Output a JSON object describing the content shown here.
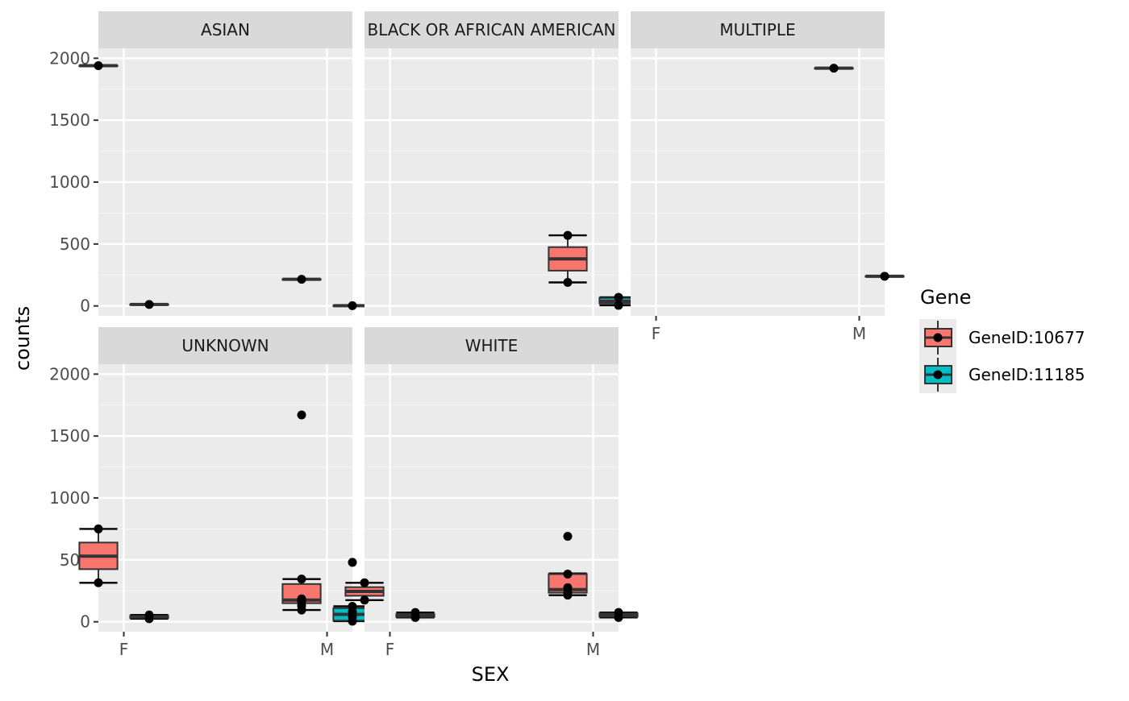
{
  "chart_data": {
    "type": "boxplot",
    "facet_variable": "RACE",
    "xlabel": "SEX",
    "ylabel": "counts",
    "ylim": [
      -80,
      2080
    ],
    "y_ticks": [
      0,
      500,
      1000,
      1500,
      2000
    ],
    "x_categories": [
      "F",
      "M"
    ],
    "grid": true,
    "legend": {
      "title": "Gene",
      "position": "right",
      "entries": [
        {
          "label": "GeneID:10677",
          "color": "#F8766D"
        },
        {
          "label": "GeneID:11185",
          "color": "#00BFC4"
        }
      ]
    },
    "panels": [
      {
        "title": "ASIAN",
        "boxes": [
          {
            "sex": "F",
            "gene": "GeneID:10677",
            "min": 1940,
            "q1": 1940,
            "median": 1940,
            "q3": 1940,
            "max": 1940,
            "points": [
              1940
            ]
          },
          {
            "sex": "F",
            "gene": "GeneID:11185",
            "min": 12,
            "q1": 12,
            "median": 12,
            "q3": 12,
            "max": 12,
            "points": [
              12
            ]
          },
          {
            "sex": "M",
            "gene": "GeneID:10677",
            "min": 215,
            "q1": 215,
            "median": 215,
            "q3": 215,
            "max": 215,
            "points": [
              215
            ]
          },
          {
            "sex": "M",
            "gene": "GeneID:11185",
            "min": 2,
            "q1": 2,
            "median": 2,
            "q3": 2,
            "max": 2,
            "points": [
              2
            ]
          }
        ]
      },
      {
        "title": "BLACK OR AFRICAN AMERICAN",
        "boxes": [
          {
            "sex": "M",
            "gene": "GeneID:10677",
            "min": 190,
            "q1": 285,
            "median": 380,
            "q3": 475,
            "max": 570,
            "points": [
              190,
              570
            ]
          },
          {
            "sex": "M",
            "gene": "GeneID:11185",
            "min": 5,
            "q1": 20,
            "median": 38,
            "q3": 65,
            "max": 70,
            "points": [
              5,
              70
            ]
          }
        ]
      },
      {
        "title": "MULTIPLE",
        "boxes": [
          {
            "sex": "M",
            "gene": "GeneID:10677",
            "min": 1920,
            "q1": 1920,
            "median": 1920,
            "q3": 1920,
            "max": 1920,
            "points": [
              1920
            ]
          },
          {
            "sex": "M",
            "gene": "GeneID:11185",
            "min": 240,
            "q1": 240,
            "median": 240,
            "q3": 240,
            "max": 240,
            "points": [
              240
            ]
          }
        ]
      },
      {
        "title": "UNKNOWN",
        "boxes": [
          {
            "sex": "F",
            "gene": "GeneID:10677",
            "min": 315,
            "q1": 425,
            "median": 530,
            "q3": 640,
            "max": 750,
            "points": [
              315,
              750
            ]
          },
          {
            "sex": "F",
            "gene": "GeneID:11185",
            "min": 25,
            "q1": 32,
            "median": 40,
            "q3": 48,
            "max": 55,
            "points": [
              25,
              55
            ]
          },
          {
            "sex": "M",
            "gene": "GeneID:10677",
            "min": 95,
            "q1": 150,
            "median": 175,
            "q3": 305,
            "max": 345,
            "points": [
              95,
              130,
              160,
              185,
              345,
              1670
            ]
          },
          {
            "sex": "M",
            "gene": "GeneID:11185",
            "min": 5,
            "q1": 10,
            "median": 60,
            "q3": 110,
            "max": 125,
            "points": [
              5,
              40,
              80,
              125,
              480
            ]
          }
        ]
      },
      {
        "title": "WHITE",
        "boxes": [
          {
            "sex": "F",
            "gene": "GeneID:10677",
            "min": 175,
            "q1": 210,
            "median": 245,
            "q3": 280,
            "max": 315,
            "points": [
              175,
              315
            ]
          },
          {
            "sex": "F",
            "gene": "GeneID:11185",
            "min": 35,
            "q1": 40,
            "median": 52,
            "q3": 62,
            "max": 75,
            "points": [
              35,
              75
            ]
          },
          {
            "sex": "M",
            "gene": "GeneID:10677",
            "min": 215,
            "q1": 235,
            "median": 260,
            "q3": 385,
            "max": 390,
            "points": [
              215,
              235,
              275,
              385,
              690
            ]
          },
          {
            "sex": "M",
            "gene": "GeneID:11185",
            "min": 35,
            "q1": 42,
            "median": 55,
            "q3": 68,
            "max": 75,
            "points": [
              35,
              75
            ]
          }
        ]
      }
    ]
  }
}
